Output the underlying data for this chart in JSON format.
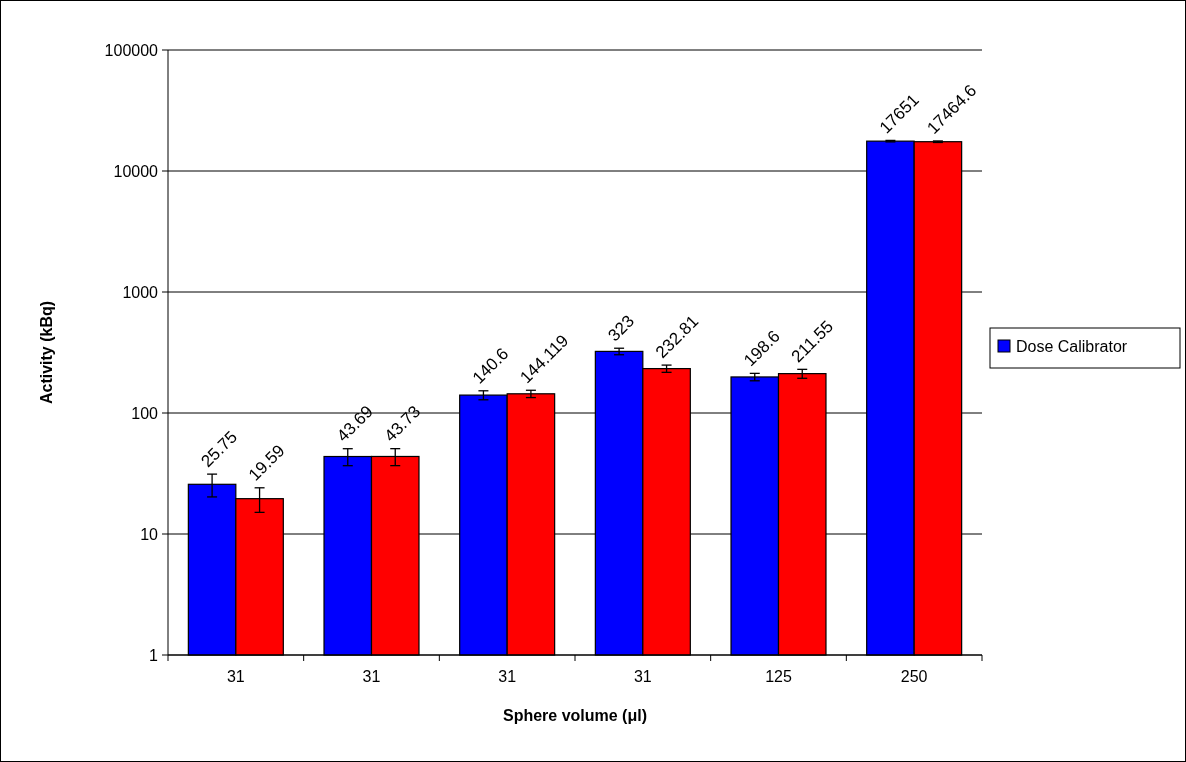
{
  "chart_data": {
    "type": "bar",
    "xlabel": "Sphere volume (μl)",
    "ylabel": "Activity (kBq)",
    "categories": [
      "31",
      "31",
      "31",
      "31",
      "125",
      "250"
    ],
    "series": [
      {
        "name": "Dose Calibrator",
        "color": "#0000ff",
        "values": [
          25.75,
          43.69,
          140.6,
          323,
          198.6,
          17651
        ],
        "errors": [
          5.5,
          7,
          12,
          20,
          14,
          250
        ]
      },
      {
        "color": "#ff0000",
        "values": [
          19.59,
          43.73,
          144.119,
          232.81,
          211.55,
          17464.6
        ],
        "errors": [
          4.5,
          7,
          10,
          16,
          18,
          250
        ]
      }
    ],
    "log": true,
    "ylim": [
      1,
      100000
    ],
    "yticks": [
      1,
      10,
      100,
      1000,
      10000,
      100000
    ],
    "grid": "y",
    "legend": "right",
    "data_labels": true
  }
}
